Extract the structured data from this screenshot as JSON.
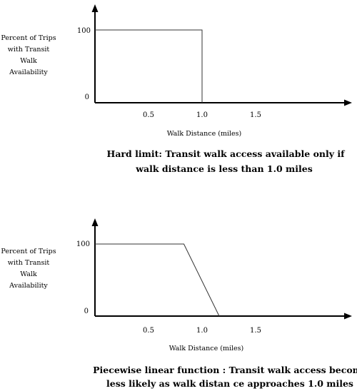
{
  "chart_data": [
    {
      "type": "line",
      "ylabel": [
        "Percent of Trips",
        "with Transit",
        "Walk",
        "Availability"
      ],
      "xlabel": "Walk Distance (miles)",
      "y_ticks": [
        "100",
        "0"
      ],
      "x_ticks": [
        "0.5",
        "1.0",
        "1.5"
      ],
      "xlim": [
        0,
        3.4
      ],
      "ylim": [
        0,
        100
      ],
      "series": [
        {
          "x": [
            0,
            1.0,
            1.0
          ],
          "y": [
            100,
            100,
            0
          ]
        }
      ],
      "caption": [
        "Hard limit:  Transit walk access available  only if",
        "walk distance is less than 1.0 miles"
      ]
    },
    {
      "type": "line",
      "ylabel": [
        "Percent of Trips",
        "with Transit",
        "Walk",
        "Availability"
      ],
      "xlabel": "Walk Distance (miles)",
      "y_ticks": [
        "100",
        "0"
      ],
      "x_ticks": [
        "0.5",
        "1.0",
        "1.5"
      ],
      "xlim": [
        0,
        3.4
      ],
      "ylim": [
        0,
        100
      ],
      "series": [
        {
          "x": [
            0,
            0.83,
            1.16
          ],
          "y": [
            100,
            100,
            0
          ]
        }
      ],
      "caption": [
        "Piecewise linear function :  Transit walk access  becomes",
        "less likely as walk distan ce approaches  1.0 miles"
      ]
    }
  ],
  "colors": {
    "axis": "#000000",
    "series": "#333333"
  }
}
